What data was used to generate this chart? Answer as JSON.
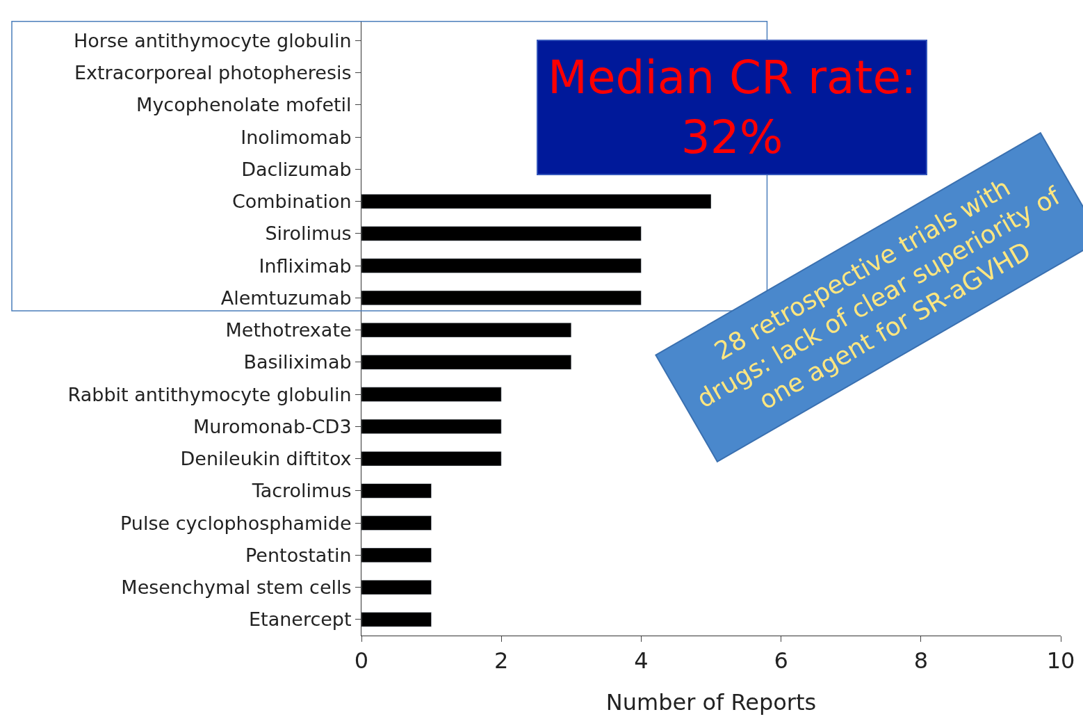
{
  "chart_data": {
    "type": "bar",
    "orientation": "horizontal",
    "xlabel": "Number of Reports",
    "categories": [
      "Horse antithymocyte globulin",
      "Extracorporeal photopheresis",
      "Mycophenolate mofetil",
      "Inolimomab",
      "Daclizumab",
      "Combination",
      "Sirolimus",
      "Infliximab",
      "Alemtuzumab",
      "Methotrexate",
      "Basiliximab",
      "Rabbit antithymocyte globulin",
      "Muromonab-CD3",
      "Denileukin diftitox",
      "Tacrolimus",
      "Pulse cyclophosphamide",
      "Pentostatin",
      "Mesenchymal stem cells",
      "Etanercept"
    ],
    "values": [
      null,
      null,
      null,
      null,
      null,
      5,
      4,
      4,
      4,
      3,
      3,
      2,
      2,
      2,
      1,
      1,
      1,
      1,
      1
    ],
    "color": "#000000",
    "xlim": [
      0,
      10
    ],
    "xticks": [
      0,
      2,
      4,
      6,
      8,
      10
    ],
    "annotations": [
      "Median CR rate:\n32%",
      "28 retrospective trials with\ndrugs: lack of clear superiority of\none agent for SR-aGVHD"
    ]
  }
}
